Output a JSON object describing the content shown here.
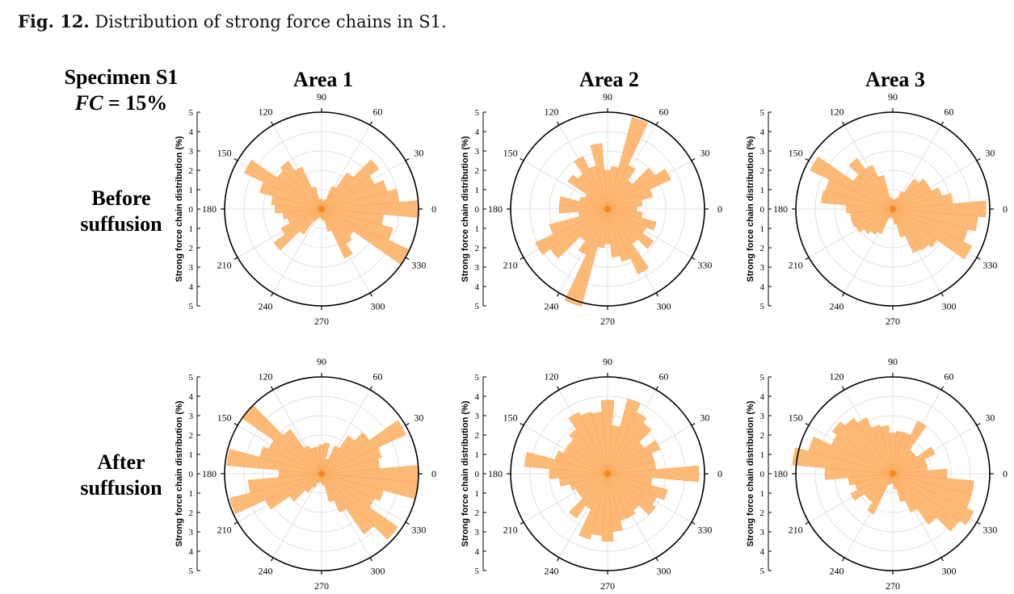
{
  "caption": {
    "label": "Fig. 12.",
    "text": " Distribution of strong force chains in S1."
  },
  "specimen": {
    "line1": "Specimen S1",
    "fc_symbol": "FC",
    "fc_value": " = 15%"
  },
  "areas": [
    "Area 1",
    "Area 2",
    "Area 3"
  ],
  "rows": [
    {
      "line1": "Before",
      "line2": "suffusion"
    },
    {
      "line1": "After",
      "line2": "suffusion"
    }
  ],
  "styles": {
    "bar_fill": "#FDB46B",
    "bar_stroke": "#F6A14E",
    "center_dot": "#F08A1E",
    "grid": "#d9d9d9",
    "outer": "#000000"
  },
  "chart_data": [
    {
      "type": "polar-bar",
      "panel": "before-area-1",
      "ylabel": "Strong force chain distribution (%)",
      "rlim": [
        0,
        5
      ],
      "ticks": [
        5,
        4,
        3,
        2,
        1,
        0,
        1,
        2,
        3,
        4,
        5
      ],
      "angles": [
        0,
        30,
        60,
        90,
        120,
        150,
        180,
        210,
        240,
        270,
        300,
        330
      ],
      "bin_width_deg": 10,
      "bins_deg": [
        0,
        10,
        20,
        30,
        40,
        50,
        60,
        70,
        80,
        90,
        100,
        110,
        120,
        130,
        140,
        150,
        160,
        170,
        180,
        190,
        200,
        210,
        220,
        230,
        240,
        250,
        260,
        270,
        280,
        290,
        300,
        310,
        320,
        330,
        340,
        350
      ],
      "values": [
        5.0,
        4.0,
        3.5,
        3.0,
        3.6,
        2.3,
        1.3,
        0.5,
        0.4,
        0.5,
        0.5,
        1.2,
        2.4,
        3.0,
        2.8,
        4.4,
        3.3,
        2.6,
        2.4,
        2.0,
        1.8,
        2.3,
        3.0,
        1.6,
        0.7,
        0.5,
        0.4,
        0.5,
        0.6,
        1.2,
        2.8,
        2.2,
        2.0,
        5.0,
        3.8,
        3.2
      ]
    },
    {
      "type": "polar-bar",
      "panel": "before-area-2",
      "ylabel": "Strong force chain distribution (%)",
      "rlim": [
        0,
        5
      ],
      "ticks": [
        5,
        4,
        3,
        2,
        1,
        0,
        1,
        2,
        3,
        4,
        5
      ],
      "angles": [
        0,
        30,
        60,
        90,
        120,
        150,
        180,
        210,
        240,
        270,
        300,
        330
      ],
      "bin_width_deg": 10,
      "bins_deg": [
        0,
        10,
        20,
        30,
        40,
        50,
        60,
        70,
        80,
        90,
        100,
        110,
        120,
        130,
        140,
        150,
        160,
        170,
        180,
        190,
        200,
        210,
        220,
        230,
        240,
        250,
        260,
        270,
        280,
        290,
        300,
        310,
        320,
        330,
        340,
        350
      ],
      "values": [
        1.5,
        1.8,
        2.4,
        3.6,
        3.0,
        1.8,
        2.5,
        4.9,
        2.2,
        2.0,
        3.4,
        2.3,
        3.0,
        2.2,
        2.5,
        1.3,
        1.5,
        2.5,
        2.5,
        1.5,
        3.1,
        4.1,
        3.6,
        2.0,
        2.6,
        5.2,
        2.0,
        1.8,
        2.5,
        2.8,
        3.7,
        2.2,
        2.9,
        2.2,
        2.6,
        1.8
      ]
    },
    {
      "type": "polar-bar",
      "panel": "before-area-3",
      "ylabel": "Strong force chain distribution (%)",
      "rlim": [
        0,
        5
      ],
      "ticks": [
        5,
        4,
        3,
        2,
        1,
        0,
        1,
        2,
        3,
        4,
        5
      ],
      "angles": [
        0,
        30,
        60,
        90,
        120,
        150,
        180,
        210,
        240,
        270,
        300,
        330
      ],
      "bin_width_deg": 10,
      "bins_deg": [
        0,
        10,
        20,
        30,
        40,
        50,
        60,
        70,
        80,
        90,
        100,
        110,
        120,
        130,
        140,
        150,
        160,
        170,
        180,
        190,
        200,
        210,
        220,
        230,
        240,
        250,
        260,
        270,
        280,
        290,
        300,
        310,
        320,
        330,
        340,
        350
      ],
      "values": [
        4.8,
        3.1,
        2.6,
        2.2,
        2.2,
        1.9,
        1.0,
        0.6,
        0.5,
        0.5,
        0.6,
        1.8,
        2.5,
        3.2,
        2.5,
        4.7,
        3.6,
        3.7,
        2.4,
        2.2,
        2.2,
        2.1,
        1.8,
        1.6,
        1.4,
        0.5,
        0.4,
        0.5,
        0.8,
        1.5,
        2.5,
        2.6,
        2.8,
        4.5,
        4.0,
        4.4
      ]
    },
    {
      "type": "polar-bar",
      "panel": "after-area-1",
      "ylabel": "Strong force chain distribution (%)",
      "rlim": [
        0,
        5
      ],
      "ticks": [
        5,
        4,
        3,
        2,
        1,
        0,
        1,
        2,
        3,
        4,
        5
      ],
      "angles": [
        0,
        30,
        60,
        90,
        120,
        150,
        180,
        210,
        240,
        270,
        300,
        330
      ],
      "bin_width_deg": 10,
      "bins_deg": [
        0,
        10,
        20,
        30,
        40,
        50,
        60,
        70,
        80,
        90,
        100,
        110,
        120,
        130,
        140,
        150,
        160,
        170,
        180,
        190,
        200,
        210,
        220,
        230,
        240,
        250,
        260,
        270,
        280,
        290,
        300,
        310,
        320,
        330,
        340,
        350
      ],
      "values": [
        5.0,
        3.0,
        3.2,
        4.8,
        3.0,
        2.4,
        1.6,
        0.8,
        1.6,
        1.5,
        1.4,
        1.4,
        1.6,
        2.8,
        5.0,
        3.0,
        3.3,
        4.9,
        2.2,
        3.8,
        4.9,
        3.2,
        2.0,
        1.2,
        0.8,
        0.5,
        0.4,
        0.5,
        0.6,
        1.5,
        2.2,
        3.8,
        4.8,
        3.0,
        3.3,
        5.0
      ]
    },
    {
      "type": "polar-bar",
      "panel": "after-area-2",
      "ylabel": "Strong force chain distribution (%)",
      "rlim": [
        0,
        5
      ],
      "ticks": [
        5,
        4,
        3,
        2,
        1,
        0,
        1,
        2,
        3,
        4,
        5
      ],
      "angles": [
        0,
        30,
        60,
        90,
        120,
        150,
        180,
        210,
        240,
        270,
        300,
        330
      ],
      "bin_width_deg": 10,
      "bins_deg": [
        0,
        10,
        20,
        30,
        40,
        50,
        60,
        70,
        80,
        90,
        100,
        110,
        120,
        130,
        140,
        150,
        160,
        170,
        180,
        190,
        200,
        210,
        220,
        230,
        240,
        250,
        260,
        270,
        280,
        290,
        300,
        310,
        320,
        330,
        340,
        350
      ],
      "values": [
        4.7,
        2.5,
        2.5,
        3.0,
        2.3,
        3.2,
        3.5,
        4.0,
        2.5,
        3.8,
        3.2,
        3.3,
        3.5,
        2.8,
        2.5,
        2.5,
        2.8,
        4.3,
        3.0,
        2.5,
        2.0,
        1.8,
        1.8,
        2.8,
        2.0,
        3.5,
        3.2,
        3.5,
        3.0,
        2.5,
        2.5,
        2.3,
        3.0,
        2.8,
        3.2,
        2.3
      ]
    },
    {
      "type": "polar-bar",
      "panel": "after-area-3",
      "ylabel": "Strong force chain distribution (%)",
      "rlim": [
        0,
        5
      ],
      "ticks": [
        5,
        4,
        3,
        2,
        1,
        0,
        1,
        2,
        3,
        4,
        5
      ],
      "angles": [
        0,
        30,
        60,
        90,
        120,
        150,
        180,
        210,
        240,
        270,
        300,
        330
      ],
      "bin_width_deg": 10,
      "bins_deg": [
        0,
        10,
        20,
        30,
        40,
        50,
        60,
        70,
        80,
        90,
        100,
        110,
        120,
        130,
        140,
        150,
        160,
        170,
        180,
        190,
        200,
        210,
        220,
        230,
        240,
        250,
        260,
        270,
        280,
        290,
        300,
        310,
        320,
        330,
        340,
        350
      ],
      "values": [
        2.8,
        1.8,
        1.8,
        2.4,
        1.5,
        1.5,
        3.0,
        2.2,
        2.2,
        2.1,
        2.5,
        2.6,
        3.2,
        3.5,
        3.8,
        3.5,
        4.5,
        5.2,
        3.5,
        2.3,
        2.0,
        2.4,
        1.8,
        1.8,
        2.3,
        0.6,
        0.5,
        0.5,
        0.8,
        1.5,
        2.2,
        3.2,
        4.2,
        4.6,
        4.2,
        4.2
      ]
    }
  ]
}
